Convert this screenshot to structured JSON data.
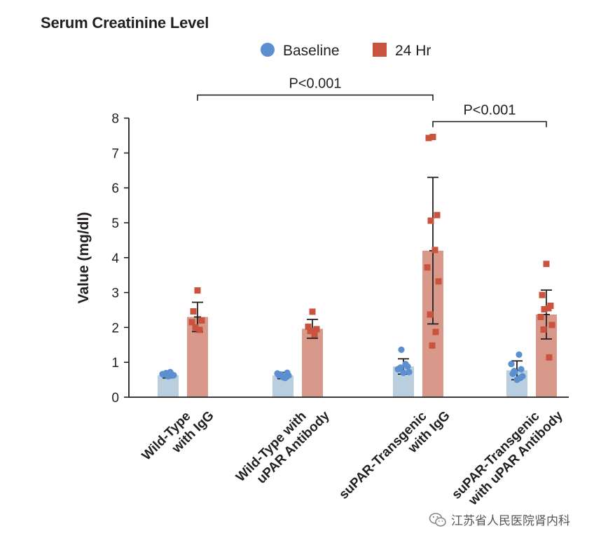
{
  "chart_data": {
    "type": "bar",
    "title": "Serum Creatinine Level",
    "ylabel": "Value (mg/dl)",
    "xlabel": "",
    "ylim": [
      0,
      8
    ],
    "yticks": [
      0,
      1,
      2,
      3,
      4,
      5,
      6,
      7,
      8
    ],
    "legend_position": "top-center",
    "categories": [
      [
        "Wild-Type",
        "with IgG"
      ],
      [
        "Wild-Type with",
        "uPAR Antibody"
      ],
      [
        "suPAR-Transgenic",
        "with IgG"
      ],
      [
        "suPAR-Transgenic",
        "with uPAR Antibody"
      ]
    ],
    "series": [
      {
        "name": "Baseline",
        "marker": "circle",
        "dot_color": "#5b8fcf",
        "bar_color": "#b9cfdf",
        "means": [
          0.63,
          0.62,
          0.88,
          0.77
        ],
        "sd": [
          0.08,
          0.09,
          0.22,
          0.27
        ],
        "points": [
          [
            0.6,
            0.65,
            0.62,
            0.69,
            0.72,
            0.66,
            0.63
          ],
          [
            0.57,
            0.63,
            0.7,
            0.65,
            0.55,
            0.68,
            0.62
          ],
          [
            0.7,
            0.82,
            0.88,
            1.36,
            0.95,
            0.8,
            0.72,
            0.85
          ],
          [
            0.5,
            0.67,
            0.8,
            0.72,
            1.22,
            0.95,
            0.6,
            0.75,
            0.55
          ]
        ]
      },
      {
        "name": "24 Hr",
        "marker": "square",
        "dot_color": "#c9533c",
        "bar_color": "#d9998a",
        "means": [
          2.3,
          1.96,
          4.2,
          2.37
        ],
        "sd": [
          0.42,
          0.27,
          2.1,
          0.7
        ],
        "points": [
          [
            3.06,
            2.46,
            2.2,
            2.0,
            1.93,
            2.15
          ],
          [
            2.45,
            2.02,
            1.95,
            1.9,
            1.8
          ],
          [
            7.46,
            7.43,
            5.22,
            5.06,
            4.22,
            3.72,
            3.32,
            2.37,
            1.87,
            1.48
          ],
          [
            3.82,
            2.93,
            2.62,
            2.52,
            2.55,
            2.3,
            2.07,
            1.94,
            1.14
          ]
        ]
      }
    ],
    "annotations": [
      {
        "text": "P<0.001",
        "from": [
          0,
          "24 Hr"
        ],
        "to": [
          2,
          "24 Hr"
        ],
        "bracket_y": 8.66
      },
      {
        "text": "P<0.001",
        "from": [
          2,
          "24 Hr"
        ],
        "to": [
          3,
          "24 Hr"
        ],
        "bracket_y": 7.9
      }
    ]
  },
  "watermark": {
    "text": "江苏省人民医院肾内科",
    "icon": "wechat-icon"
  }
}
